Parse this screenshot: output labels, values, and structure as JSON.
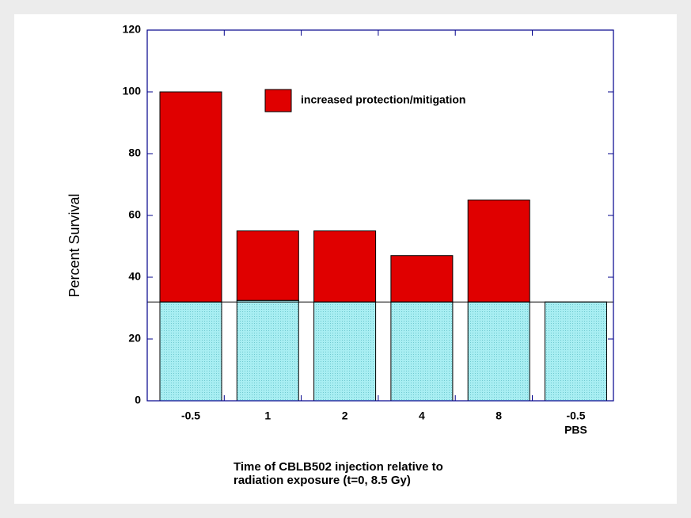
{
  "chart_data": {
    "type": "stacked_bar",
    "categories": [
      "-0.5",
      "1",
      "2",
      "4",
      "8",
      "-0.5"
    ],
    "category_notes": [
      null,
      null,
      null,
      null,
      null,
      "PBS"
    ],
    "series": [
      {
        "color": "#a8eef2",
        "values": [
          32,
          32.5,
          32,
          32,
          32,
          32
        ]
      },
      {
        "name": "increased protection/mitigation",
        "color": "#e00000",
        "values": [
          68,
          22.5,
          23,
          15,
          33,
          0
        ]
      }
    ],
    "reference_line": 32,
    "ylim": [
      0,
      120
    ],
    "yticks": [
      0,
      20,
      40,
      60,
      80,
      100,
      120
    ],
    "ylabel": "Percent Survival",
    "xlabel": [
      "Time of CBLB502 injection relative to",
      "radiation exposure (t=0, 8.5 Gy)"
    ]
  }
}
